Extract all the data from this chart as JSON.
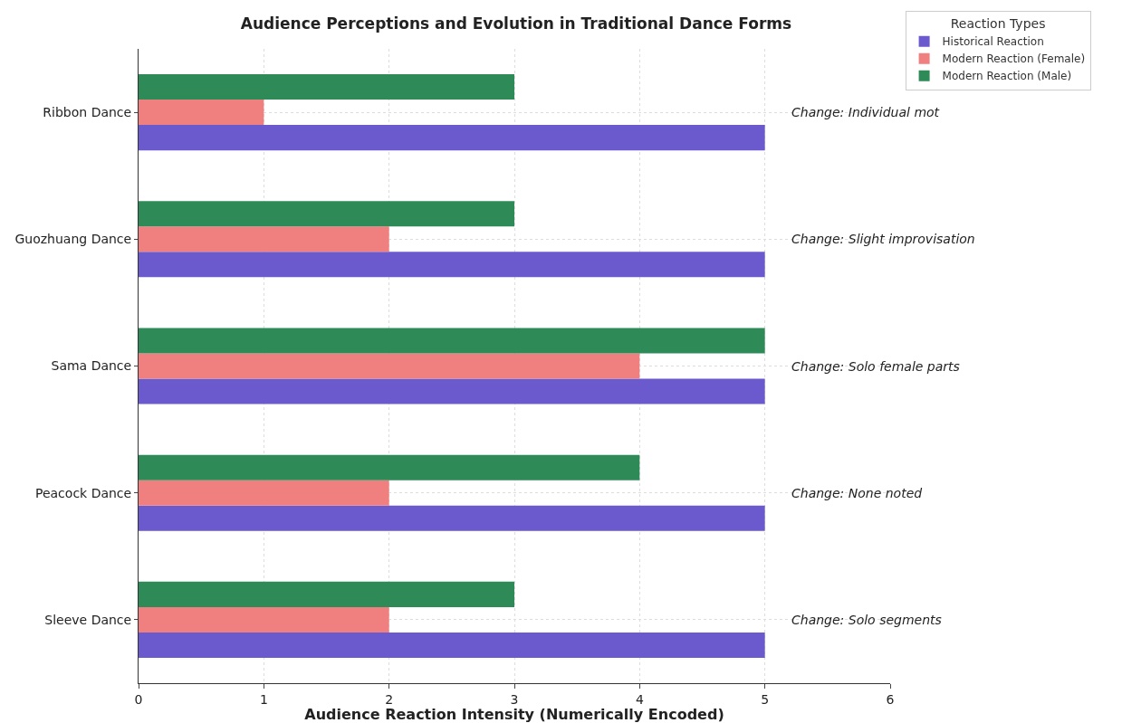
{
  "chart_data": {
    "type": "bar",
    "orientation": "horizontal",
    "title": "Audience Perceptions and Evolution in Traditional Dance Forms",
    "xlabel": "Audience Reaction Intensity (Numerically Encoded)",
    "categories": [
      "Ribbon Dance",
      "Guozhuang Dance",
      "Sama Dance",
      "Peacock Dance",
      "Sleeve Dance"
    ],
    "series": [
      {
        "name": "Historical Reaction",
        "color": "#6a5acd",
        "values": [
          5,
          5,
          5,
          5,
          5
        ]
      },
      {
        "name": "Modern Reaction (Female)",
        "color": "#f08080",
        "values": [
          1,
          2,
          4,
          2,
          2
        ]
      },
      {
        "name": "Modern Reaction (Male)",
        "color": "#2e8b57",
        "values": [
          3,
          3,
          5,
          4,
          3
        ]
      }
    ],
    "xlim": [
      0,
      6
    ],
    "xticks": [
      0,
      1,
      2,
      3,
      4,
      5,
      6
    ],
    "grid": true,
    "legend": "top right",
    "legend_title": "Reaction Types",
    "annotations": [
      "Change: Individual mot",
      "Change: Slight improvisation",
      "Change: Solo female parts",
      "Change: None noted",
      "Change: Solo segments"
    ]
  }
}
